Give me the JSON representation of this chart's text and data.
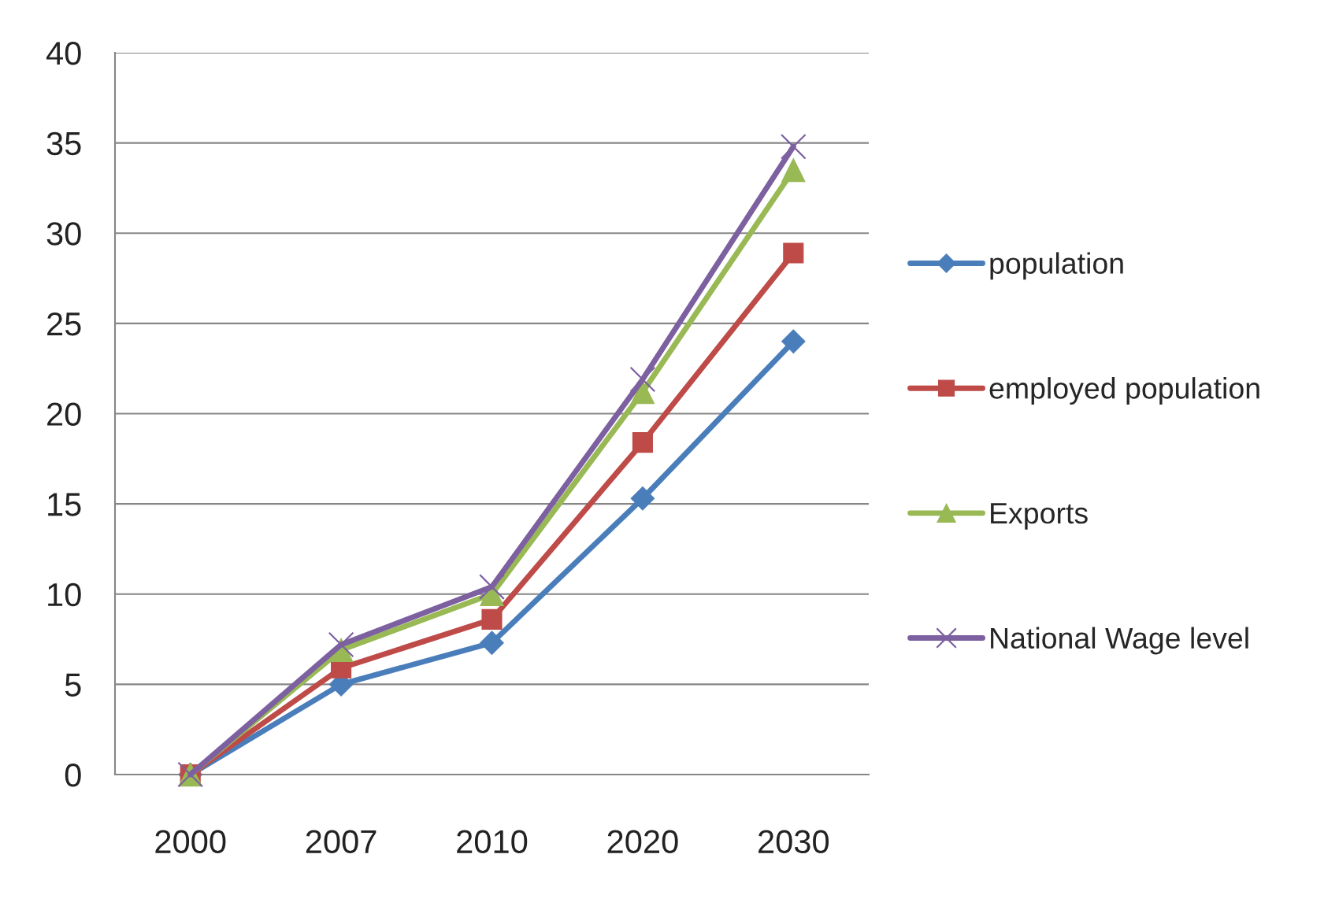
{
  "chart_data": {
    "type": "line",
    "categories": [
      "2000",
      "2007",
      "2010",
      "2020",
      "2030"
    ],
    "series": [
      {
        "name": "population",
        "color": "#4a7ebb",
        "marker": "diamond",
        "values": [
          0,
          5.0,
          7.3,
          15.3,
          24.0
        ]
      },
      {
        "name": "employed population",
        "color": "#be4b48",
        "marker": "square",
        "values": [
          0,
          5.9,
          8.6,
          18.4,
          28.9
        ]
      },
      {
        "name": "Exports",
        "color": "#98b954",
        "marker": "triangle",
        "values": [
          0,
          6.9,
          10.0,
          21.2,
          33.5
        ]
      },
      {
        "name": "National Wage level",
        "color": "#7d60a0",
        "marker": "cross",
        "values": [
          0,
          7.2,
          10.4,
          21.9,
          34.8
        ]
      }
    ],
    "ylim": [
      0,
      40
    ],
    "yticks": [
      0,
      5,
      10,
      15,
      20,
      25,
      30,
      35,
      40
    ],
    "grid": "y",
    "legend": "right",
    "line_style": "solid"
  }
}
